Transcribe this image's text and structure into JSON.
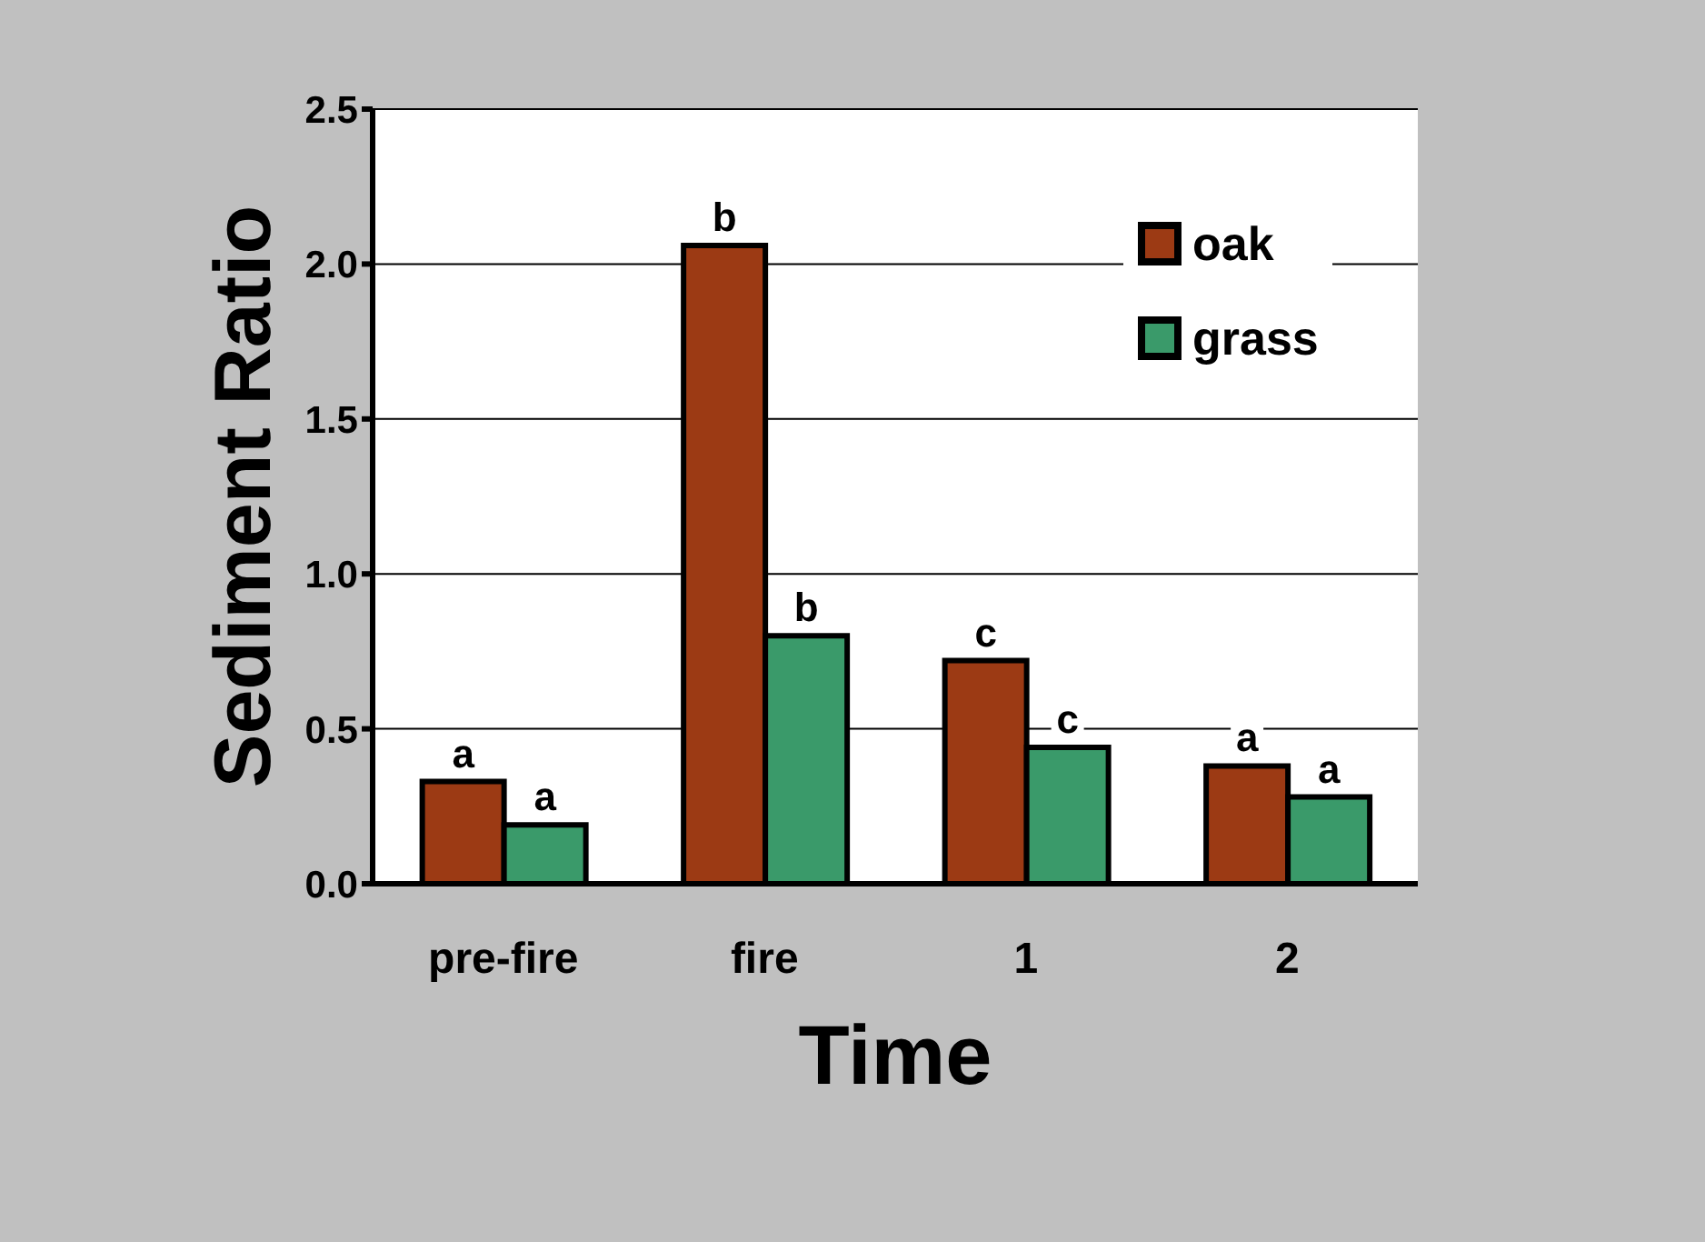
{
  "chart_data": {
    "type": "bar",
    "xlabel": "Time",
    "ylabel": "Sediment Ratio",
    "categories": [
      "pre-fire",
      "fire",
      "1",
      "2"
    ],
    "series": [
      {
        "name": "oak",
        "color": "#9c3a14",
        "values": [
          0.33,
          2.06,
          0.72,
          0.38
        ],
        "value_labels": [
          "a",
          "b",
          "c",
          "a"
        ]
      },
      {
        "name": "grass",
        "color": "#3a9a6a",
        "values": [
          0.19,
          0.8,
          0.44,
          0.28
        ],
        "value_labels": [
          "a",
          "b",
          "c",
          "a"
        ]
      }
    ],
    "ylim": [
      0,
      2.5
    ],
    "yticks": [
      {
        "value": 0,
        "label": "0.0"
      },
      {
        "value": 0.5,
        "label": "0.5"
      },
      {
        "value": 1,
        "label": "1.0"
      },
      {
        "value": 1.5,
        "label": "1.5"
      },
      {
        "value": 2,
        "label": "2.0"
      },
      {
        "value": 2.5,
        "label": "2.5"
      }
    ],
    "grid": "y",
    "legend": "top right"
  }
}
